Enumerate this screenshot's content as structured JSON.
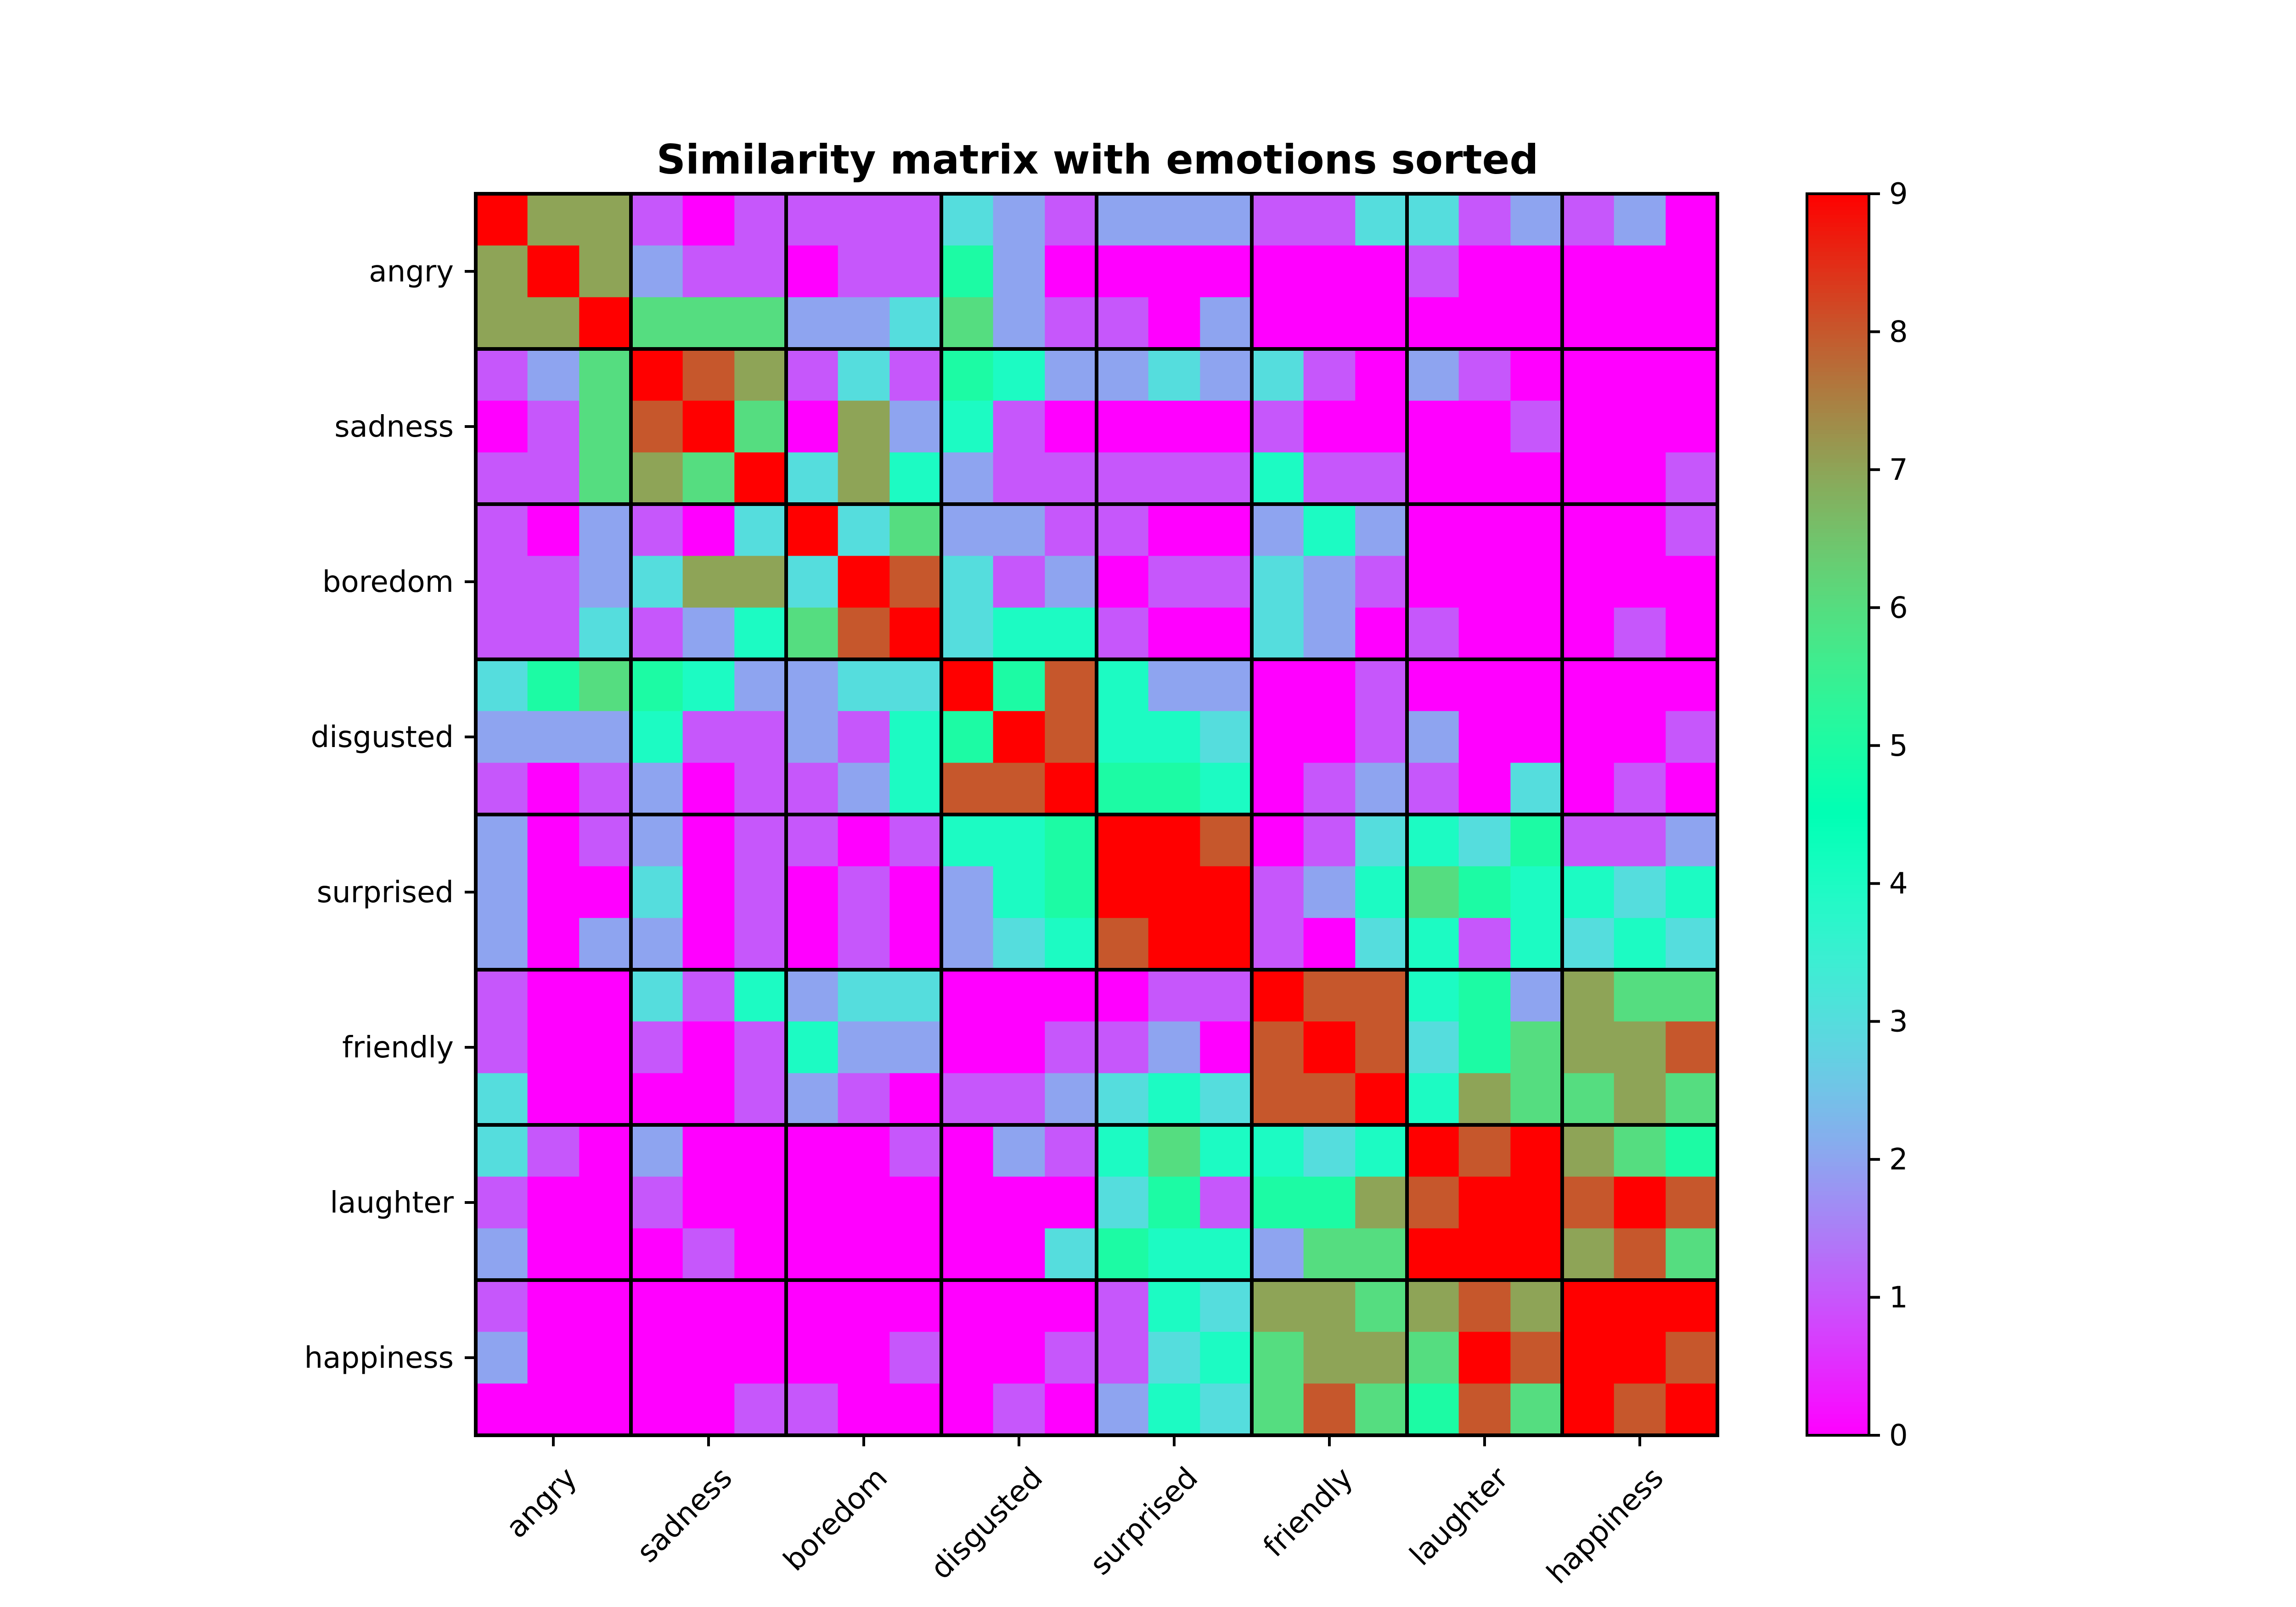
{
  "chart_data": {
    "type": "heatmap",
    "title": "Similarity matrix with emotions sorted",
    "xlabel": "",
    "ylabel": "",
    "categories": [
      "angry",
      "sadness",
      "boredom",
      "disgusted",
      "surprised",
      "friendly",
      "laughter",
      "happiness"
    ],
    "rows_per_category": 3,
    "colorbar": {
      "min": 0,
      "max": 9,
      "ticks": [
        0,
        1,
        2,
        3,
        4,
        5,
        6,
        7,
        8,
        9
      ],
      "colormap": "rainbow"
    },
    "values": [
      [
        9,
        7,
        7,
        1,
        0,
        1,
        1,
        1,
        1,
        3,
        2,
        1,
        2,
        2,
        2,
        1,
        1,
        3,
        3,
        1,
        2,
        1,
        2,
        0
      ],
      [
        7,
        9,
        7,
        2,
        1,
        1,
        0,
        1,
        1,
        5,
        2,
        0,
        0,
        0,
        0,
        0,
        0,
        0,
        1,
        0,
        0,
        0,
        0,
        0
      ],
      [
        7,
        7,
        9,
        6,
        6,
        6,
        2,
        2,
        3,
        6,
        2,
        1,
        1,
        0,
        2,
        0,
        0,
        0,
        0,
        0,
        0,
        0,
        0,
        0
      ],
      [
        1,
        2,
        6,
        9,
        8,
        7,
        1,
        3,
        1,
        5,
        4,
        2,
        2,
        3,
        2,
        3,
        1,
        0,
        2,
        1,
        0,
        0,
        0,
        0
      ],
      [
        0,
        1,
        6,
        8,
        9,
        6,
        0,
        7,
        2,
        4,
        1,
        0,
        0,
        0,
        0,
        1,
        0,
        0,
        0,
        0,
        1,
        0,
        0,
        0
      ],
      [
        1,
        1,
        6,
        7,
        6,
        9,
        3,
        7,
        4,
        2,
        1,
        1,
        1,
        1,
        1,
        4,
        1,
        1,
        0,
        0,
        0,
        0,
        0,
        1
      ],
      [
        1,
        0,
        2,
        1,
        0,
        3,
        9,
        3,
        6,
        2,
        2,
        1,
        1,
        0,
        0,
        2,
        4,
        2,
        0,
        0,
        0,
        0,
        0,
        1
      ],
      [
        1,
        1,
        2,
        3,
        7,
        7,
        3,
        9,
        8,
        3,
        1,
        2,
        0,
        1,
        1,
        3,
        2,
        1,
        0,
        0,
        0,
        0,
        0,
        0
      ],
      [
        1,
        1,
        3,
        1,
        2,
        4,
        6,
        8,
        9,
        3,
        4,
        4,
        1,
        0,
        0,
        3,
        2,
        0,
        1,
        0,
        0,
        0,
        1,
        0
      ],
      [
        3,
        5,
        6,
        5,
        4,
        2,
        2,
        3,
        3,
        9,
        5,
        8,
        4,
        2,
        2,
        0,
        0,
        1,
        0,
        0,
        0,
        0,
        0,
        0
      ],
      [
        2,
        2,
        2,
        4,
        1,
        1,
        2,
        1,
        4,
        5,
        9,
        8,
        4,
        4,
        3,
        0,
        0,
        1,
        2,
        0,
        0,
        0,
        0,
        1
      ],
      [
        1,
        0,
        1,
        2,
        0,
        1,
        1,
        2,
        4,
        8,
        8,
        9,
        5,
        5,
        4,
        0,
        1,
        2,
        1,
        0,
        3,
        0,
        1,
        0
      ],
      [
        2,
        0,
        1,
        2,
        0,
        1,
        1,
        0,
        1,
        4,
        4,
        5,
        9,
        9,
        8,
        0,
        1,
        3,
        4,
        3,
        5,
        1,
        1,
        2
      ],
      [
        2,
        0,
        0,
        3,
        0,
        1,
        0,
        1,
        0,
        2,
        4,
        5,
        9,
        9,
        9,
        1,
        2,
        4,
        6,
        5,
        4,
        4,
        3,
        4
      ],
      [
        2,
        0,
        2,
        2,
        0,
        1,
        0,
        1,
        0,
        2,
        3,
        4,
        8,
        9,
        9,
        1,
        0,
        3,
        4,
        1,
        4,
        3,
        4,
        3
      ],
      [
        1,
        0,
        0,
        3,
        1,
        4,
        2,
        3,
        3,
        0,
        0,
        0,
        0,
        1,
        1,
        9,
        8,
        8,
        4,
        5,
        2,
        7,
        6,
        6
      ],
      [
        1,
        0,
        0,
        1,
        0,
        1,
        4,
        2,
        2,
        0,
        0,
        1,
        1,
        2,
        0,
        8,
        9,
        8,
        3,
        5,
        6,
        7,
        7,
        8
      ],
      [
        3,
        0,
        0,
        0,
        0,
        1,
        2,
        1,
        0,
        1,
        1,
        2,
        3,
        4,
        3,
        8,
        8,
        9,
        4,
        7,
        6,
        6,
        7,
        6
      ],
      [
        3,
        1,
        0,
        2,
        0,
        0,
        0,
        0,
        1,
        0,
        2,
        1,
        4,
        6,
        4,
        4,
        3,
        4,
        9,
        8,
        9,
        7,
        6,
        5
      ],
      [
        1,
        0,
        0,
        1,
        0,
        0,
        0,
        0,
        0,
        0,
        0,
        0,
        3,
        5,
        1,
        5,
        5,
        7,
        8,
        9,
        9,
        8,
        9,
        8
      ],
      [
        2,
        0,
        0,
        0,
        1,
        0,
        0,
        0,
        0,
        0,
        0,
        3,
        5,
        4,
        4,
        2,
        6,
        6,
        9,
        9,
        9,
        7,
        8,
        6
      ],
      [
        1,
        0,
        0,
        0,
        0,
        0,
        0,
        0,
        0,
        0,
        0,
        0,
        1,
        4,
        3,
        7,
        7,
        6,
        7,
        8,
        7,
        9,
        9,
        9
      ],
      [
        2,
        0,
        0,
        0,
        0,
        0,
        0,
        0,
        1,
        0,
        0,
        1,
        1,
        3,
        4,
        6,
        7,
        7,
        6,
        9,
        8,
        9,
        9,
        8
      ],
      [
        0,
        0,
        0,
        0,
        0,
        1,
        1,
        0,
        0,
        0,
        1,
        0,
        2,
        4,
        3,
        6,
        8,
        6,
        5,
        8,
        6,
        9,
        8,
        9
      ]
    ]
  }
}
